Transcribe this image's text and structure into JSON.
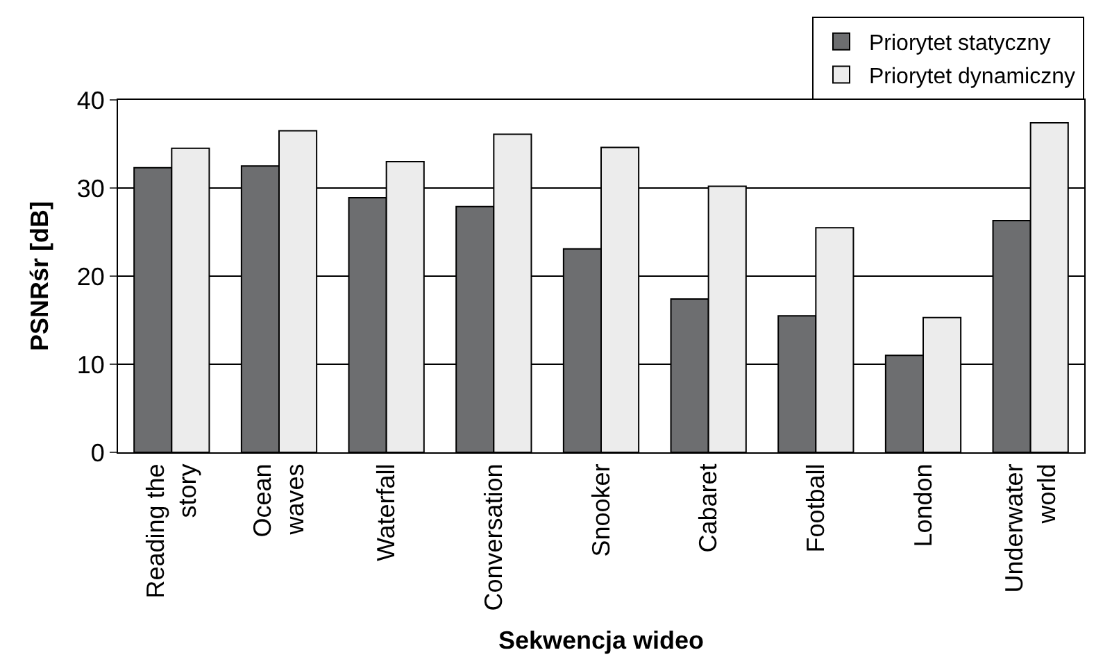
{
  "chart_data": {
    "type": "bar",
    "xlabel": "Sekwencja wideo",
    "ylabel": "PSNRśr [dB]",
    "categories": [
      "Reading the\nstory",
      "Ocean\nwaves",
      "Waterfall",
      "Conversation",
      "Snooker",
      "Cabaret",
      "Football",
      "London",
      "Underwater\nworld"
    ],
    "series": [
      {
        "name": "Priorytet statyczny",
        "color": "#6d6e70",
        "values": [
          32.3,
          32.5,
          28.9,
          27.9,
          23.1,
          17.4,
          15.5,
          11.0,
          26.3
        ]
      },
      {
        "name": "Priorytet dynamiczny",
        "color": "#ececec",
        "values": [
          34.5,
          36.5,
          33.0,
          36.1,
          34.6,
          30.2,
          25.5,
          15.3,
          37.4
        ]
      }
    ],
    "ylim": [
      0,
      40
    ],
    "yticks": [
      0,
      10,
      20,
      30,
      40
    ],
    "grid": "y",
    "legend": "top right"
  }
}
